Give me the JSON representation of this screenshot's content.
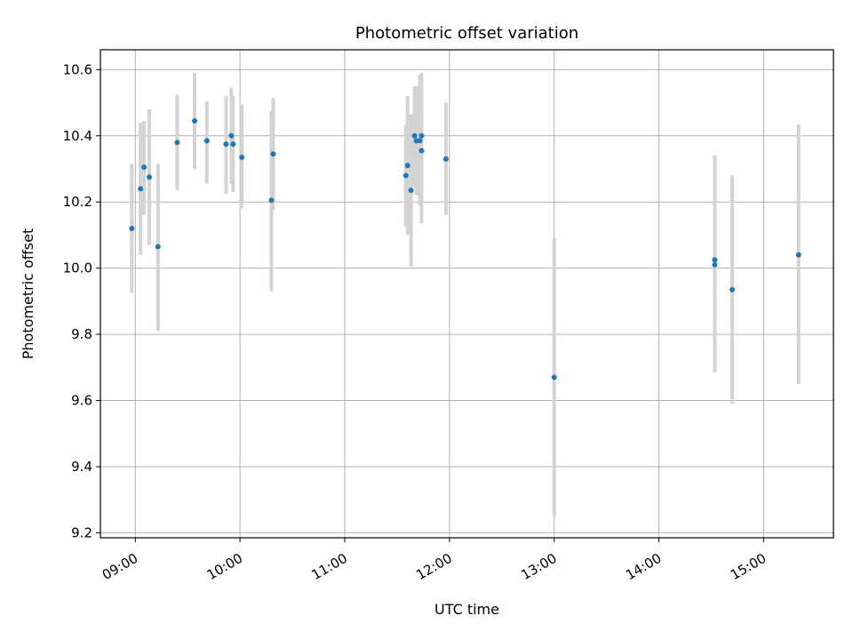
{
  "chart_data": {
    "type": "scatter",
    "title": "Photometric offset variation",
    "xlabel": "UTC time",
    "ylabel": "Photometric offset",
    "x_tick_labels": [
      "09:00",
      "10:00",
      "11:00",
      "12:00",
      "13:00",
      "14:00",
      "15:00"
    ],
    "y_tick_labels": [
      "9.2",
      "9.4",
      "9.6",
      "9.8",
      "10.0",
      "10.2",
      "10.4",
      "10.6"
    ],
    "xlim": [
      "08:40",
      "15:40"
    ],
    "ylim": [
      9.185,
      10.66
    ],
    "grid": true,
    "colors": {
      "point": "#1f77b4",
      "errorbar": "#d3d3d3",
      "grid": "#b0b0b0"
    },
    "points": [
      {
        "x": "08:58",
        "y": 10.12,
        "err_low": 9.925,
        "err_high": 10.315
      },
      {
        "x": "09:03",
        "y": 10.24,
        "err_low": 10.04,
        "err_high": 10.44
      },
      {
        "x": "09:05",
        "y": 10.305,
        "err_low": 10.16,
        "err_high": 10.445
      },
      {
        "x": "09:08",
        "y": 10.275,
        "err_low": 10.07,
        "err_high": 10.48
      },
      {
        "x": "09:13",
        "y": 10.065,
        "err_low": 9.81,
        "err_high": 10.315
      },
      {
        "x": "09:24",
        "y": 10.38,
        "err_low": 10.235,
        "err_high": 10.525
      },
      {
        "x": "09:34",
        "y": 10.445,
        "err_low": 10.3,
        "err_high": 10.59
      },
      {
        "x": "09:41",
        "y": 10.385,
        "err_low": 10.255,
        "err_high": 10.505
      },
      {
        "x": "09:52",
        "y": 10.375,
        "err_low": 10.225,
        "err_high": 10.52
      },
      {
        "x": "09:55",
        "y": 10.4,
        "err_low": 10.255,
        "err_high": 10.545
      },
      {
        "x": "09:56",
        "y": 10.375,
        "err_low": 10.23,
        "err_high": 10.52
      },
      {
        "x": "10:01",
        "y": 10.335,
        "err_low": 10.18,
        "err_high": 10.495
      },
      {
        "x": "10:18",
        "y": 10.205,
        "err_low": 9.93,
        "err_high": 10.475
      },
      {
        "x": "10:19",
        "y": 10.345,
        "err_low": 10.175,
        "err_high": 10.515
      },
      {
        "x": "11:35",
        "y": 10.28,
        "err_low": 10.125,
        "err_high": 10.435
      },
      {
        "x": "11:36",
        "y": 10.31,
        "err_low": 10.1,
        "err_high": 10.52
      },
      {
        "x": "11:38",
        "y": 10.235,
        "err_low": 10.005,
        "err_high": 10.465
      },
      {
        "x": "11:40",
        "y": 10.4,
        "err_low": 10.245,
        "err_high": 10.55
      },
      {
        "x": "11:41",
        "y": 10.385,
        "err_low": 10.22,
        "err_high": 10.55
      },
      {
        "x": "11:43",
        "y": 10.385,
        "err_low": 10.19,
        "err_high": 10.585
      },
      {
        "x": "11:44",
        "y": 10.4,
        "err_low": 10.195,
        "err_high": 10.59
      },
      {
        "x": "11:44",
        "y": 10.355,
        "err_low": 10.135,
        "err_high": 10.57
      },
      {
        "x": "11:58",
        "y": 10.33,
        "err_low": 10.16,
        "err_high": 10.5
      },
      {
        "x": "13:00",
        "y": 9.67,
        "err_low": 9.25,
        "err_high": 10.09
      },
      {
        "x": "14:32",
        "y": 10.01,
        "err_low": 9.685,
        "err_high": 10.335
      },
      {
        "x": "14:32",
        "y": 10.025,
        "err_low": 9.705,
        "err_high": 10.34
      },
      {
        "x": "14:42",
        "y": 9.935,
        "err_low": 9.59,
        "err_high": 10.28
      },
      {
        "x": "15:20",
        "y": 10.04,
        "err_low": 9.65,
        "err_high": 10.435
      }
    ]
  }
}
